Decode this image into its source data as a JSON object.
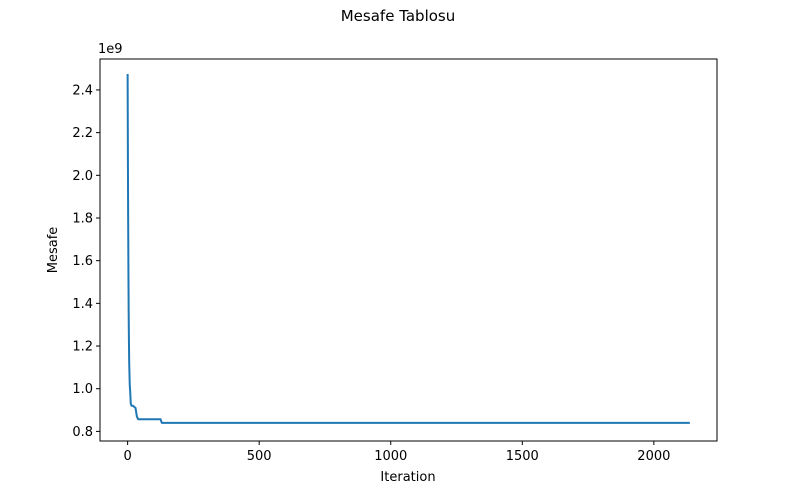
{
  "figure": {
    "title": "Mesafe Tablosu"
  },
  "chart_data": {
    "type": "line",
    "title": "Mesafe Tablosu",
    "xlabel": "Iteration",
    "ylabel": "Mesafe",
    "y_offset_label": "1e9",
    "y_scale_factor": 1000000000,
    "xlim": [
      -105,
      2240
    ],
    "ylim": [
      0.755,
      2.545
    ],
    "xticks": [
      0,
      500,
      1000,
      1500,
      2000
    ],
    "xtick_labels": [
      "0",
      "500",
      "1000",
      "1500",
      "2000"
    ],
    "yticks": [
      0.8,
      1.0,
      1.2,
      1.4,
      1.6,
      1.8,
      2.0,
      2.2,
      2.4
    ],
    "ytick_labels": [
      "0.8",
      "1.0",
      "1.2",
      "1.4",
      "1.6",
      "1.8",
      "2.0",
      "2.2",
      "2.4"
    ],
    "grid": false,
    "legend": false,
    "series": [
      {
        "color": "#1f77b4",
        "x": [
          0,
          1,
          2,
          3,
          4,
          5,
          6,
          8,
          10,
          12,
          15,
          20,
          25,
          30,
          35,
          40,
          50,
          60,
          80,
          100,
          120,
          125,
          130,
          140,
          150,
          200,
          500,
          1000,
          1500,
          2000,
          2133
        ],
        "y": [
          2.47,
          2.1,
          1.8,
          1.55,
          1.35,
          1.22,
          1.12,
          1.02,
          0.98,
          0.93,
          0.92,
          0.92,
          0.915,
          0.91,
          0.87,
          0.857,
          0.857,
          0.857,
          0.857,
          0.857,
          0.857,
          0.857,
          0.84,
          0.84,
          0.84,
          0.84,
          0.84,
          0.84,
          0.84,
          0.84,
          0.84
        ]
      }
    ]
  }
}
